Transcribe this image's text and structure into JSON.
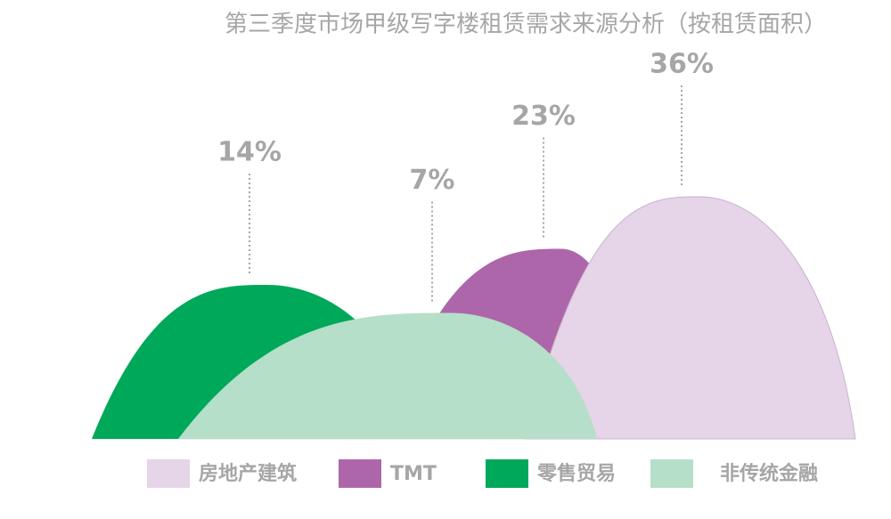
{
  "chart_data": {
    "type": "mountain",
    "title": "第三季度市场甲级写字楼租赁需求来源分析（按租赁面积）",
    "categories": [
      "房地产建筑",
      "TMT",
      "零售贸易",
      "非传统金融"
    ],
    "values": [
      36,
      23,
      14,
      7
    ],
    "value_labels": [
      "36%",
      "23%",
      "14%",
      "7%"
    ],
    "colors": [
      "#e6d4e9",
      "#ae66aa",
      "#00a85a",
      "#b5dfc8"
    ]
  }
}
